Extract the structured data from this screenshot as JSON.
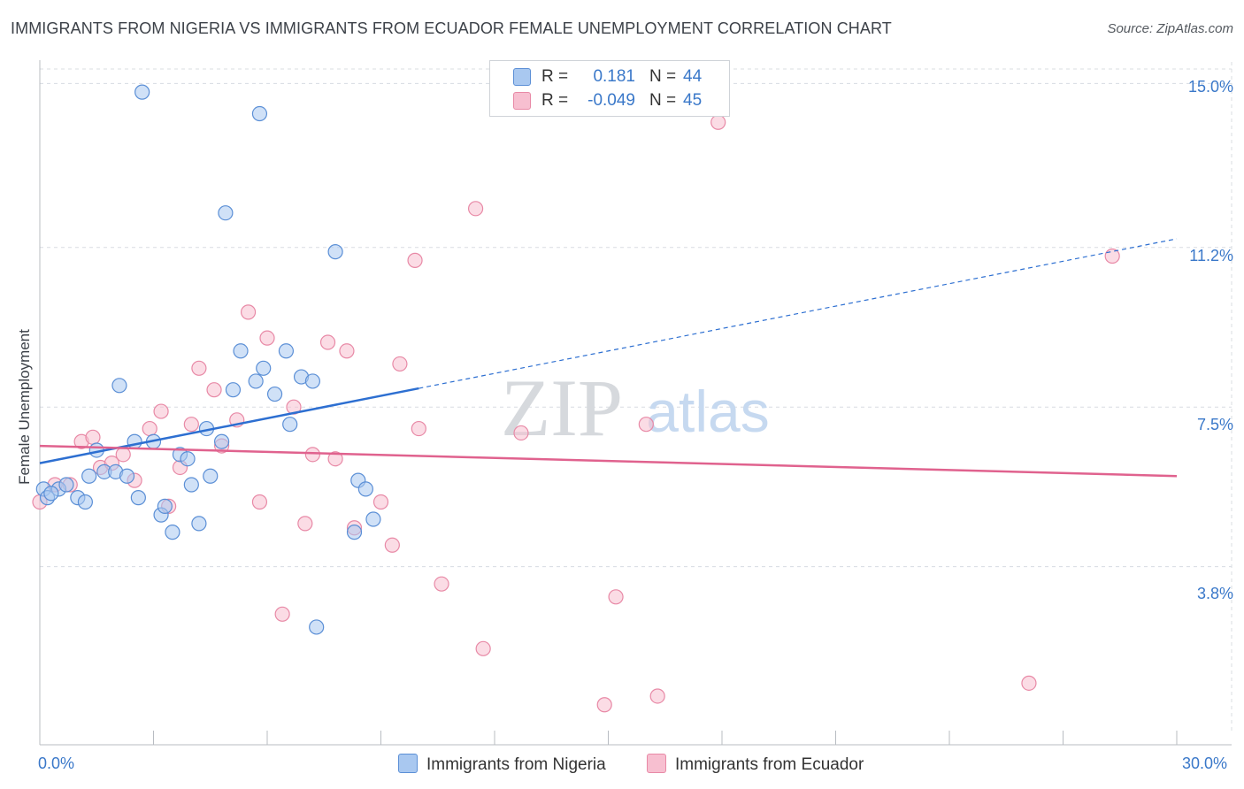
{
  "title": "IMMIGRANTS FROM NIGERIA VS IMMIGRANTS FROM ECUADOR FEMALE UNEMPLOYMENT CORRELATION CHART",
  "source": "Source: ZipAtlas.com",
  "watermark": {
    "zip": "ZIP",
    "atlas": "atlas"
  },
  "legend": {
    "r_label": "R =",
    "n_label": "N =",
    "rows": [
      {
        "r": "0.181",
        "n": "44"
      },
      {
        "r": "-0.049",
        "n": "45"
      }
    ]
  },
  "colors": {
    "nigeria_fill": "#a9c8f0",
    "nigeria_stroke": "#5b8fd6",
    "nigeria_line": "#2d6fd1",
    "ecuador_fill": "#f7bfd0",
    "ecuador_stroke": "#e889a6",
    "ecuador_line": "#e0628e",
    "grid": "#d8dce2",
    "axis_text": "#3a78c9"
  },
  "chart_data": {
    "type": "scatter",
    "title": "IMMIGRANTS FROM NIGERIA VS IMMIGRANTS FROM ECUADOR FEMALE UNEMPLOYMENT CORRELATION CHART",
    "xlabel": "",
    "ylabel": "Female Unemployment",
    "xlim": [
      0,
      30
    ],
    "ylim": [
      0,
      15.5
    ],
    "x_tick_labels": [
      "0.0%",
      "30.0%"
    ],
    "y_ticks": [
      3.8,
      7.5,
      11.2,
      15.0
    ],
    "y_tick_labels": [
      "3.8%",
      "7.5%",
      "11.2%",
      "15.0%"
    ],
    "grid": true,
    "series": [
      {
        "name": "Immigrants from Nigeria",
        "r": 0.181,
        "n": 44,
        "trend": {
          "x0": 0,
          "y0": 6.2,
          "x1": 30,
          "y1": 11.4,
          "solid_until_x": 10
        },
        "points": [
          [
            0.1,
            5.6
          ],
          [
            0.2,
            5.4
          ],
          [
            0.5,
            5.6
          ],
          [
            0.7,
            5.7
          ],
          [
            1.0,
            5.4
          ],
          [
            1.2,
            5.3
          ],
          [
            1.3,
            5.9
          ],
          [
            1.5,
            6.5
          ],
          [
            1.7,
            6.0
          ],
          [
            2.0,
            6.0
          ],
          [
            2.1,
            8.0
          ],
          [
            2.3,
            5.9
          ],
          [
            2.5,
            6.7
          ],
          [
            2.6,
            5.4
          ],
          [
            2.7,
            14.8
          ],
          [
            3.0,
            6.7
          ],
          [
            3.2,
            5.0
          ],
          [
            3.3,
            5.2
          ],
          [
            3.5,
            4.6
          ],
          [
            3.7,
            6.4
          ],
          [
            3.9,
            6.3
          ],
          [
            4.0,
            5.7
          ],
          [
            4.2,
            4.8
          ],
          [
            4.4,
            7.0
          ],
          [
            4.5,
            5.9
          ],
          [
            4.8,
            6.7
          ],
          [
            4.9,
            12.0
          ],
          [
            5.1,
            7.9
          ],
          [
            5.3,
            8.8
          ],
          [
            5.7,
            8.1
          ],
          [
            5.8,
            14.3
          ],
          [
            5.9,
            8.4
          ],
          [
            6.2,
            7.8
          ],
          [
            6.5,
            8.8
          ],
          [
            6.6,
            7.1
          ],
          [
            6.9,
            8.2
          ],
          [
            7.2,
            8.1
          ],
          [
            7.3,
            2.4
          ],
          [
            7.8,
            11.1
          ],
          [
            8.3,
            4.6
          ],
          [
            8.4,
            5.8
          ],
          [
            8.6,
            5.6
          ],
          [
            8.8,
            4.9
          ],
          [
            0.3,
            5.5
          ]
        ]
      },
      {
        "name": "Immigrants from Ecuador",
        "r": -0.049,
        "n": 45,
        "trend": {
          "x0": 0,
          "y0": 6.6,
          "x1": 30,
          "y1": 5.9
        },
        "points": [
          [
            0.0,
            5.3
          ],
          [
            0.4,
            5.7
          ],
          [
            0.8,
            5.7
          ],
          [
            1.1,
            6.7
          ],
          [
            1.4,
            6.8
          ],
          [
            1.6,
            6.1
          ],
          [
            1.9,
            6.2
          ],
          [
            2.2,
            6.4
          ],
          [
            2.5,
            5.8
          ],
          [
            2.9,
            7.0
          ],
          [
            3.2,
            7.4
          ],
          [
            3.4,
            5.2
          ],
          [
            3.7,
            6.1
          ],
          [
            4.0,
            7.1
          ],
          [
            4.2,
            8.4
          ],
          [
            4.6,
            7.9
          ],
          [
            4.8,
            6.6
          ],
          [
            5.2,
            7.2
          ],
          [
            5.5,
            9.7
          ],
          [
            5.8,
            5.3
          ],
          [
            6.0,
            9.1
          ],
          [
            6.4,
            2.7
          ],
          [
            6.7,
            7.5
          ],
          [
            7.0,
            4.8
          ],
          [
            7.2,
            6.4
          ],
          [
            7.6,
            9.0
          ],
          [
            7.8,
            6.3
          ],
          [
            8.1,
            8.8
          ],
          [
            8.3,
            4.7
          ],
          [
            9.0,
            5.3
          ],
          [
            9.3,
            4.3
          ],
          [
            9.5,
            8.5
          ],
          [
            9.9,
            10.9
          ],
          [
            10.0,
            7.0
          ],
          [
            10.6,
            3.4
          ],
          [
            11.5,
            12.1
          ],
          [
            11.7,
            1.9
          ],
          [
            12.7,
            6.9
          ],
          [
            14.9,
            0.6
          ],
          [
            15.2,
            3.1
          ],
          [
            16.0,
            7.1
          ],
          [
            16.3,
            0.8
          ],
          [
            17.9,
            14.1
          ],
          [
            26.1,
            1.1
          ],
          [
            28.3,
            11.0
          ]
        ]
      }
    ]
  }
}
